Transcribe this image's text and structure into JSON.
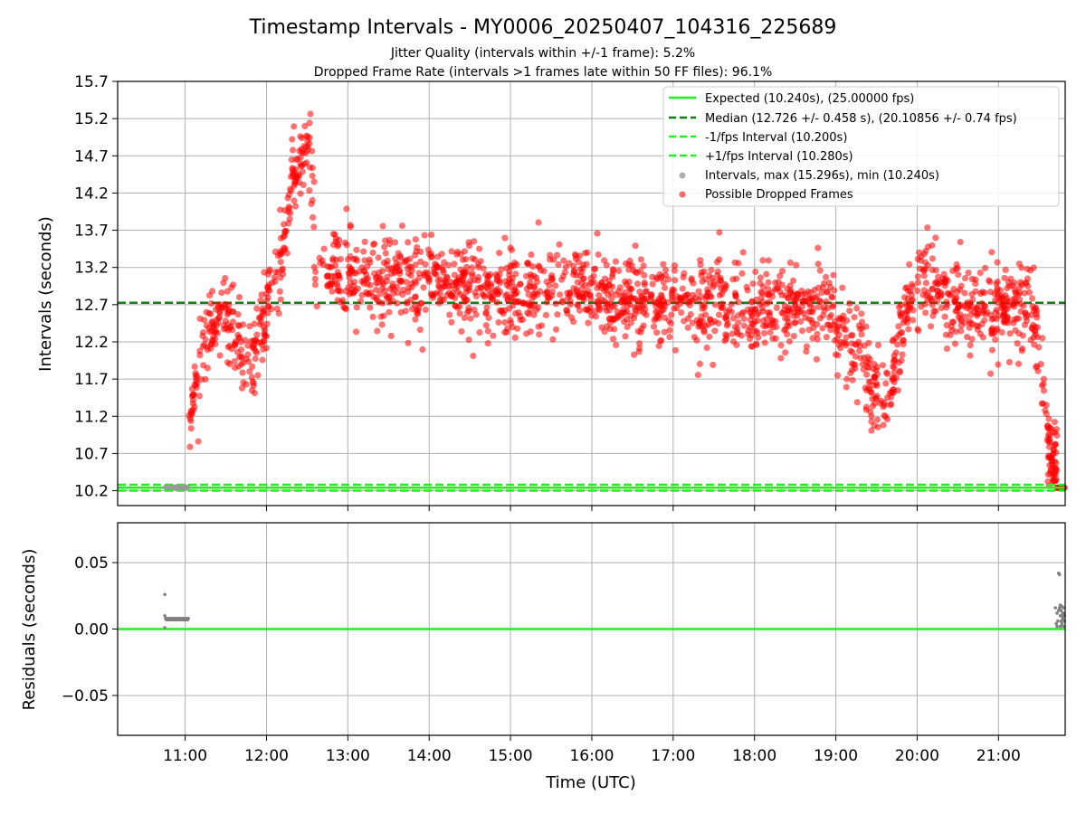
{
  "chart_data": {
    "type": "scatter",
    "title": "Timestamp Intervals - MY0006_20250407_104316_225689",
    "subtitle_lines": [
      "Jitter Quality (intervals within +/-1 frame): 5.2%",
      "Dropped Frame Rate (intervals >1 frames late within 50 FF files): 96.1%"
    ],
    "xlabel": "Time (UTC)",
    "x_ticks": [
      "11:00",
      "12:00",
      "13:00",
      "14:00",
      "15:00",
      "16:00",
      "17:00",
      "18:00",
      "19:00",
      "20:00",
      "21:00"
    ],
    "x_tick_hours": [
      11,
      12,
      13,
      14,
      15,
      16,
      17,
      18,
      19,
      20,
      21
    ],
    "xlim_hours": [
      10.17,
      21.82
    ],
    "grid": true,
    "colors": {
      "expected": "#22ee22",
      "median": "#108010",
      "fps_interval": "#22ee22",
      "intervals": "#999999",
      "dropped": "#ff0000",
      "residuals": "#808080"
    },
    "top": {
      "ylabel": "Intervals (seconds)",
      "ylim": [
        10.0,
        15.7
      ],
      "y_ticks": [
        "10.2",
        "10.7",
        "11.2",
        "11.7",
        "12.2",
        "12.7",
        "13.2",
        "13.7",
        "14.2",
        "14.7",
        "15.2",
        "15.7"
      ],
      "legend_position": "upper right",
      "legend": [
        "Expected (10.240s), (25.00000 fps)",
        "Median (12.726 +/- 0.458 s), (20.10856 +/- 0.74 fps)",
        "-1/fps Interval (10.200s)",
        "+1/fps Interval (10.280s)",
        "Intervals, max (15.296s), min (10.240s)",
        "Possible Dropped Frames"
      ],
      "expected_y": 10.24,
      "median_y": 12.726,
      "minus_fps_y": 10.2,
      "plus_fps_y": 10.28,
      "dropped_trend": [
        [
          10.78,
          10.24
        ],
        [
          10.95,
          10.24
        ],
        [
          11.05,
          10.9
        ],
        [
          11.12,
          11.7
        ],
        [
          11.3,
          12.3
        ],
        [
          11.5,
          12.6
        ],
        [
          11.7,
          12.0
        ],
        [
          11.85,
          12.1
        ],
        [
          12.05,
          12.8
        ],
        [
          12.2,
          13.2
        ],
        [
          12.3,
          14.3
        ],
        [
          12.45,
          14.7
        ],
        [
          12.55,
          14.8
        ],
        [
          12.6,
          13.2
        ],
        [
          13.0,
          13.1
        ],
        [
          13.5,
          13.0
        ],
        [
          14.0,
          13.0
        ],
        [
          14.5,
          12.9
        ],
        [
          15.0,
          12.8
        ],
        [
          15.5,
          12.9
        ],
        [
          16.0,
          12.9
        ],
        [
          16.5,
          12.8
        ],
        [
          17.0,
          12.7
        ],
        [
          17.5,
          12.7
        ],
        [
          18.0,
          12.6
        ],
        [
          18.5,
          12.7
        ],
        [
          18.9,
          12.6
        ],
        [
          19.1,
          12.3
        ],
        [
          19.3,
          12.1
        ],
        [
          19.5,
          11.5
        ],
        [
          19.65,
          11.5
        ],
        [
          19.8,
          12.3
        ],
        [
          20.0,
          13.0
        ],
        [
          20.3,
          12.9
        ],
        [
          20.7,
          12.6
        ],
        [
          21.0,
          12.6
        ],
        [
          21.3,
          12.7
        ],
        [
          21.45,
          12.6
        ],
        [
          21.55,
          11.6
        ],
        [
          21.65,
          10.6
        ],
        [
          21.72,
          10.24
        ],
        [
          21.82,
          10.24
        ]
      ],
      "dropped_spread": 0.28,
      "dropped_point_count": 2100
    },
    "bottom": {
      "ylabel": "Residuals (seconds)",
      "ylim": [
        -0.08,
        0.08
      ],
      "y_ticks": [
        "−0.05",
        "0.00",
        "0.05"
      ],
      "y_tick_values": [
        -0.05,
        0.0,
        0.05
      ],
      "zero_line_y": 0.0,
      "residual_points": [
        [
          10.75,
          0.026
        ],
        [
          10.75,
          0.01
        ],
        [
          10.76,
          0.008
        ],
        [
          10.77,
          0.007
        ],
        [
          10.78,
          0.008
        ],
        [
          10.79,
          0.007
        ],
        [
          10.8,
          0.008
        ],
        [
          10.81,
          0.007
        ],
        [
          10.82,
          0.008
        ],
        [
          10.83,
          0.007
        ],
        [
          10.84,
          0.008
        ],
        [
          10.85,
          0.007
        ],
        [
          10.86,
          0.008
        ],
        [
          10.87,
          0.007
        ],
        [
          10.88,
          0.008
        ],
        [
          10.89,
          0.007
        ],
        [
          10.9,
          0.008
        ],
        [
          10.91,
          0.007
        ],
        [
          10.92,
          0.008
        ],
        [
          10.93,
          0.007
        ],
        [
          10.94,
          0.008
        ],
        [
          10.95,
          0.007
        ],
        [
          10.96,
          0.008
        ],
        [
          10.97,
          0.007
        ],
        [
          10.98,
          0.008
        ],
        [
          10.99,
          0.007
        ],
        [
          11.0,
          0.008
        ],
        [
          11.01,
          0.007
        ],
        [
          11.02,
          0.008
        ],
        [
          11.03,
          0.007
        ],
        [
          11.04,
          0.008
        ],
        [
          10.75,
          0.001
        ],
        [
          21.7,
          0.016
        ],
        [
          21.71,
          0.004
        ],
        [
          21.72,
          0.012
        ],
        [
          21.73,
          0.006
        ],
        [
          21.74,
          0.042
        ],
        [
          21.75,
          0.041
        ],
        [
          21.75,
          0.016
        ],
        [
          21.76,
          0.002
        ],
        [
          21.76,
          0.01
        ],
        [
          21.77,
          0.014
        ],
        [
          21.77,
          0.006
        ],
        [
          21.78,
          0.017
        ],
        [
          21.78,
          0.004
        ],
        [
          21.79,
          0.012
        ],
        [
          21.79,
          0.008
        ],
        [
          21.8,
          0.016
        ],
        [
          21.8,
          0.002
        ],
        [
          21.81,
          0.01
        ],
        [
          21.81,
          0.006
        ],
        [
          21.72,
          0.002
        ],
        [
          21.74,
          0.014
        ],
        [
          21.76,
          0.018
        ],
        [
          21.78,
          0.01
        ],
        [
          21.8,
          0.012
        ]
      ]
    }
  }
}
